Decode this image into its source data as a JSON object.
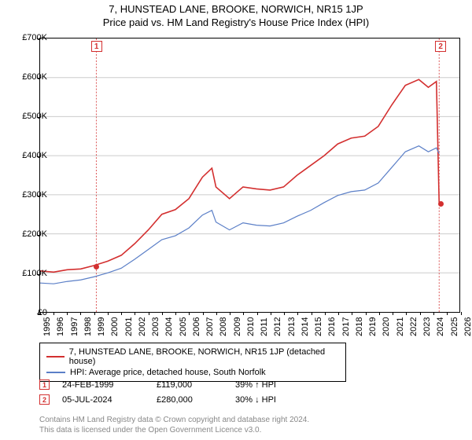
{
  "title": "7, HUNSTEAD LANE, BROOKE, NORWICH, NR15 1JP",
  "subtitle": "Price paid vs. HM Land Registry's House Price Index (HPI)",
  "chart": {
    "type": "line",
    "background_color": "#ffffff",
    "grid_color": "#cccccc",
    "axis_color": "#000000",
    "ylim": [
      0,
      700000
    ],
    "ytick_step": 100000,
    "y_labels": [
      "£0",
      "£100K",
      "£200K",
      "£300K",
      "£400K",
      "£500K",
      "£600K",
      "£700K"
    ],
    "x_years": [
      1995,
      1996,
      1997,
      1998,
      1999,
      2000,
      2001,
      2002,
      2003,
      2004,
      2005,
      2006,
      2007,
      2008,
      2009,
      2010,
      2011,
      2012,
      2013,
      2014,
      2015,
      2016,
      2017,
      2018,
      2019,
      2020,
      2021,
      2022,
      2023,
      2024,
      2025,
      2026
    ],
    "series": [
      {
        "name": "property",
        "color": "#d32f2f",
        "width": 1.6,
        "data": [
          [
            1995,
            105000
          ],
          [
            1996,
            102000
          ],
          [
            1997,
            108000
          ],
          [
            1998,
            110000
          ],
          [
            1999,
            119000
          ],
          [
            2000,
            130000
          ],
          [
            2001,
            145000
          ],
          [
            2002,
            175000
          ],
          [
            2003,
            210000
          ],
          [
            2004,
            250000
          ],
          [
            2005,
            262000
          ],
          [
            2006,
            290000
          ],
          [
            2007,
            345000
          ],
          [
            2007.7,
            368000
          ],
          [
            2008,
            320000
          ],
          [
            2009,
            290000
          ],
          [
            2010,
            320000
          ],
          [
            2011,
            315000
          ],
          [
            2012,
            312000
          ],
          [
            2013,
            320000
          ],
          [
            2014,
            350000
          ],
          [
            2015,
            375000
          ],
          [
            2016,
            400000
          ],
          [
            2017,
            430000
          ],
          [
            2018,
            445000
          ],
          [
            2019,
            450000
          ],
          [
            2020,
            475000
          ],
          [
            2021,
            530000
          ],
          [
            2022,
            580000
          ],
          [
            2023,
            595000
          ],
          [
            2023.7,
            575000
          ],
          [
            2024.3,
            590000
          ],
          [
            2024.5,
            280000
          ]
        ]
      },
      {
        "name": "hpi",
        "color": "#5b7fc7",
        "width": 1.2,
        "data": [
          [
            1995,
            74000
          ],
          [
            1996,
            72000
          ],
          [
            1997,
            78000
          ],
          [
            1998,
            82000
          ],
          [
            1999,
            90000
          ],
          [
            2000,
            100000
          ],
          [
            2001,
            112000
          ],
          [
            2002,
            135000
          ],
          [
            2003,
            160000
          ],
          [
            2004,
            185000
          ],
          [
            2005,
            195000
          ],
          [
            2006,
            215000
          ],
          [
            2007,
            248000
          ],
          [
            2007.7,
            260000
          ],
          [
            2008,
            230000
          ],
          [
            2009,
            210000
          ],
          [
            2010,
            228000
          ],
          [
            2011,
            222000
          ],
          [
            2012,
            220000
          ],
          [
            2013,
            228000
          ],
          [
            2014,
            245000
          ],
          [
            2015,
            260000
          ],
          [
            2016,
            280000
          ],
          [
            2017,
            298000
          ],
          [
            2018,
            308000
          ],
          [
            2019,
            312000
          ],
          [
            2020,
            330000
          ],
          [
            2021,
            370000
          ],
          [
            2022,
            410000
          ],
          [
            2023,
            425000
          ],
          [
            2023.7,
            410000
          ],
          [
            2024.3,
            420000
          ],
          [
            2024.5,
            405000
          ]
        ]
      }
    ],
    "markers": [
      {
        "num": "1",
        "year": 1999.15,
        "value": 119000
      },
      {
        "num": "2",
        "year": 2024.5,
        "value": 280000
      }
    ]
  },
  "legend": {
    "items": [
      {
        "color": "#d32f2f",
        "label": "7, HUNSTEAD LANE, BROOKE, NORWICH, NR15 1JP (detached house)"
      },
      {
        "color": "#5b7fc7",
        "label": "HPI: Average price, detached house, South Norfolk"
      }
    ]
  },
  "sales": [
    {
      "num": "1",
      "date": "24-FEB-1999",
      "price": "£119,000",
      "delta": "39% ↑ HPI"
    },
    {
      "num": "2",
      "date": "05-JUL-2024",
      "price": "£280,000",
      "delta": "30% ↓ HPI"
    }
  ],
  "footer": {
    "line1": "Contains HM Land Registry data © Crown copyright and database right 2024.",
    "line2": "This data is licensed under the Open Government Licence v3.0."
  }
}
